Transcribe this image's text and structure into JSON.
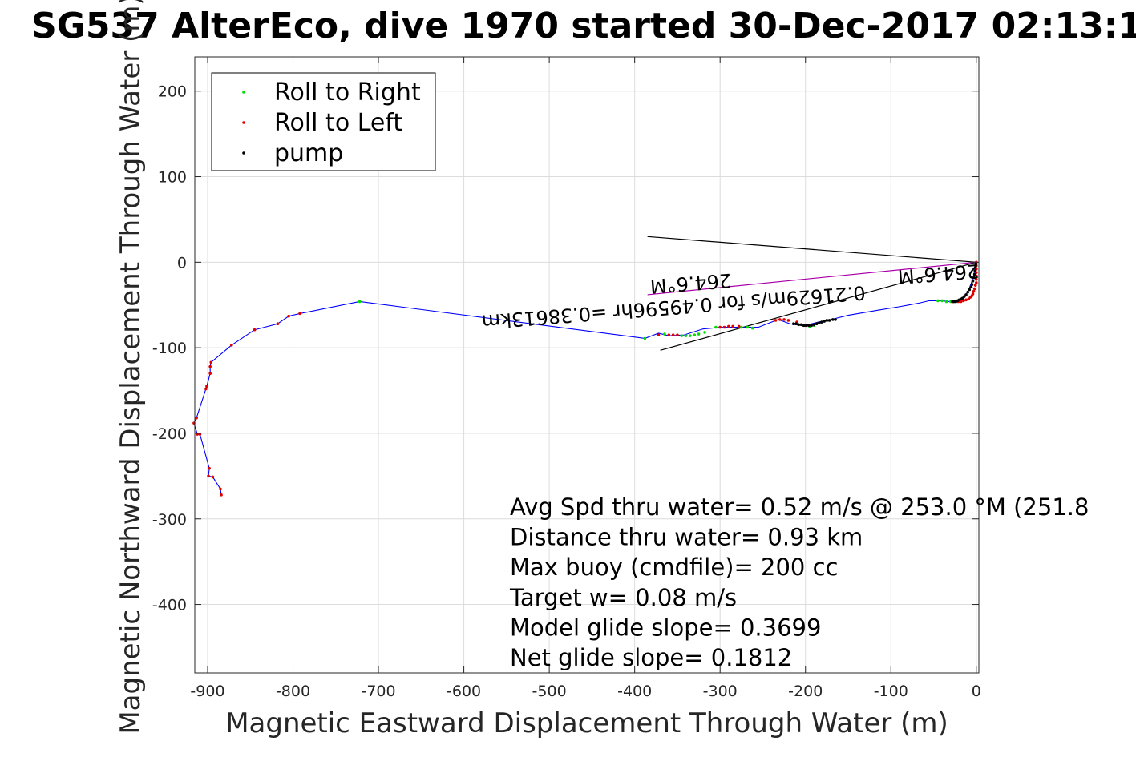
{
  "chart_data": {
    "type": "scatter",
    "title": "SG537 AlterEco, dive 1970 started 30-Dec-2017 02:13:1",
    "xlabel": "Magnetic Eastward Displacement Through Water (m)",
    "ylabel": "Magnetic Northward Displacement Through Water (m)",
    "xlim": [
      -915,
      3
    ],
    "ylim": [
      -480,
      240
    ],
    "xticks": [
      -900,
      -800,
      -700,
      -600,
      -500,
      -400,
      -300,
      -200,
      -100,
      0
    ],
    "xtick_labels": [
      "-900",
      "-800",
      "-700",
      "-600",
      "-500",
      "-400",
      "-300",
      "-200",
      "-100",
      "0"
    ],
    "yticks": [
      200,
      100,
      0,
      -100,
      -200,
      -300,
      -400
    ],
    "ytick_labels": [
      "200",
      "100",
      "0",
      "-100",
      "-200",
      "-300",
      "-400"
    ],
    "grid": true,
    "legend_position": "top-left",
    "legend": [
      "Roll to Right",
      "Roll to Left",
      "pump"
    ],
    "series": [
      {
        "name": "track",
        "kind": "line",
        "color": "#0000ff",
        "x": [
          0,
          -1,
          -2,
          -3,
          -5,
          -8,
          -12,
          -18,
          -25,
          -32,
          -40,
          -55,
          -68,
          -90,
          -115,
          -150,
          -170,
          -185,
          -197,
          -205,
          -218,
          -232,
          -255,
          -275,
          -298,
          -320,
          -342,
          -360,
          -372,
          -388,
          -722,
          -792,
          -805,
          -818,
          -845,
          -872,
          -896,
          -897,
          -897,
          -901,
          -902,
          -913,
          -916,
          -912,
          -909,
          -898,
          -899,
          -894,
          -885,
          -884
        ],
        "y": [
          0,
          -5,
          -10,
          -15,
          -22,
          -30,
          -38,
          -43,
          -46,
          -46,
          -45,
          -45,
          -48,
          -52,
          -56,
          -62,
          -67,
          -70,
          -73,
          -74,
          -72,
          -67,
          -76,
          -76,
          -76,
          -78,
          -85,
          -86,
          -83,
          -89,
          -46,
          -60,
          -63,
          -72,
          -79,
          -97,
          -117,
          -122,
          -130,
          -145,
          -148,
          -182,
          -188,
          -201,
          -201,
          -241,
          -250,
          -251,
          -265,
          -272
        ]
      }
    ],
    "markers": [
      {
        "name": "Roll to Right",
        "color": "#00e000",
        "x": [
          -30,
          -35,
          -40,
          -45,
          -190,
          -195,
          -200,
          -262,
          -268,
          -275,
          -305,
          -318,
          -325,
          -330,
          -335,
          -340,
          -345,
          -365,
          -388,
          -722
        ],
        "y": [
          -46,
          -46,
          -45,
          -45,
          -74,
          -75,
          -74,
          -77,
          -76,
          -76,
          -76,
          -82,
          -84,
          -85,
          -86,
          -86,
          -86,
          -84,
          -89,
          -46
        ]
      },
      {
        "name": "Roll to Left",
        "color": "#e00000",
        "x": [
          0,
          0,
          0,
          0,
          0,
          0,
          0,
          -1,
          -2,
          -3,
          -4,
          -5,
          -7,
          -9,
          -12,
          -15,
          -18,
          -21,
          -24,
          -27,
          -200,
          -210,
          -220,
          -225,
          -230,
          -235,
          -278,
          -285,
          -290,
          -295,
          -300,
          -350,
          -355,
          -360,
          -372,
          -792,
          -805,
          -818,
          -845,
          -872,
          -896,
          -897,
          -897,
          -901,
          -902,
          -913,
          -916,
          -912,
          -909,
          -898,
          -899,
          -894,
          -885,
          -884
        ],
        "y": [
          0,
          -4,
          -8,
          -12,
          -16,
          -20,
          -24,
          -27,
          -31,
          -34,
          -37,
          -39,
          -41,
          -43,
          -44,
          -45,
          -46,
          -46,
          -46,
          -46,
          -74,
          -70,
          -68,
          -67,
          -67,
          -68,
          -75,
          -75,
          -75,
          -76,
          -76,
          -85,
          -85,
          -85,
          -85,
          -60,
          -63,
          -72,
          -79,
          -97,
          -117,
          -122,
          -130,
          -145,
          -148,
          -182,
          -188,
          -201,
          -201,
          -241,
          -250,
          -251,
          -265,
          -272
        ]
      },
      {
        "name": "pump",
        "color": "#000000",
        "x": [
          -0.5,
          -1,
          -1.5,
          -2,
          -3,
          -4,
          -5,
          -6,
          -8,
          -10,
          -12,
          -14,
          -16,
          -18,
          -20,
          -22,
          -24,
          -26,
          -28,
          -165,
          -168,
          -172,
          -175,
          -178,
          -181,
          -184,
          -187,
          -190,
          -193,
          -196,
          -199,
          -202,
          -205,
          -208,
          -211,
          -214
        ],
        "y": [
          -2,
          -6,
          -10,
          -14,
          -18,
          -22,
          -26,
          -29,
          -32,
          -35,
          -38,
          -40,
          -42,
          -43,
          -44,
          -45,
          -46,
          -46,
          -46,
          -67,
          -67,
          -68,
          -68,
          -69,
          -70,
          -71,
          -72,
          -73,
          -74,
          -74,
          -74,
          -74,
          -73,
          -73,
          -72,
          -72
        ]
      }
    ],
    "reference_lines": [
      {
        "x": [
          -385,
          0
        ],
        "y": [
          30,
          0
        ],
        "color": "#000000"
      },
      {
        "x": [
          -370,
          0
        ],
        "y": [
          -103,
          0
        ],
        "color": "#000000"
      },
      {
        "x": [
          -385,
          0
        ],
        "y": [
          -38,
          0
        ],
        "color": "#aa00aa"
      }
    ],
    "rotated_labels": [
      {
        "text": "264.6°M",
        "x": -45,
        "y": -6,
        "angle": 175.6
      },
      {
        "text": "0.21629m/s for 0.49596hr =0.38613km",
        "x": -355,
        "y": -45,
        "angle": 175.6
      },
      {
        "text": "264.6°M",
        "x": -335,
        "y": -17,
        "angle": 175.6
      }
    ],
    "annotations": [
      "Avg Spd thru water=  0.52 m/s @ 253.0 °M (251.8",
      "Distance thru water=  0.93 km",
      "Max buoy (cmdfile)= 200 cc",
      "Target w= 0.08 m/s",
      "Model glide slope= 0.3699",
      "Net glide slope= 0.1812"
    ]
  }
}
